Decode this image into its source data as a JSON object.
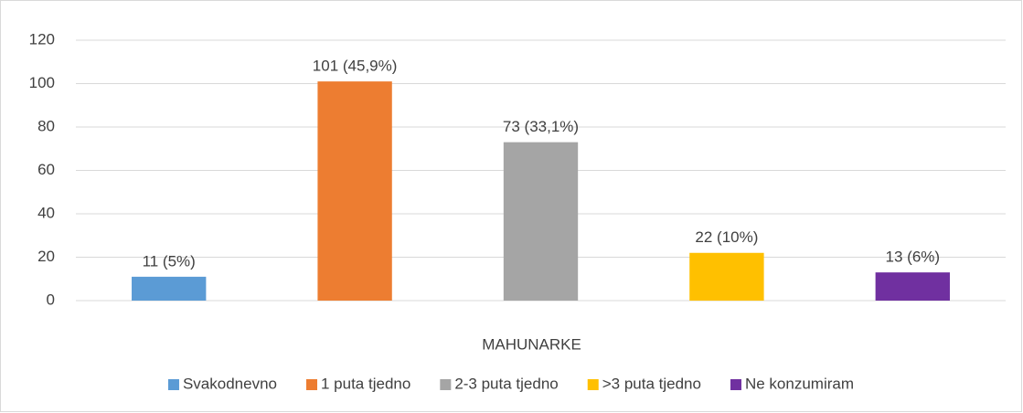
{
  "chart_data": {
    "type": "bar",
    "categories": [
      "MAHUNARKE"
    ],
    "series": [
      {
        "name": "Svakodnevno",
        "color": "#5b9bd5",
        "values": [
          11
        ],
        "value_labels": [
          "11 (5%)"
        ]
      },
      {
        "name": "1 puta tjedno",
        "color": "#ed7d31",
        "values": [
          101
        ],
        "value_labels": [
          "101 (45,9%)"
        ]
      },
      {
        "name": "2-3 puta tjedno",
        "color": "#a5a5a5",
        "values": [
          73
        ],
        "value_labels": [
          "73 (33,1%)"
        ]
      },
      {
        "name": ">3 puta tjedno",
        "color": "#ffc000",
        "values": [
          22
        ],
        "value_labels": [
          "22 (10%)"
        ]
      },
      {
        "name": "Ne konzumiram",
        "color": "#7030a0",
        "values": [
          13
        ],
        "value_labels": [
          "13 (6%)"
        ]
      }
    ],
    "ylim": [
      0,
      120
    ],
    "yticks": [
      0,
      20,
      40,
      60,
      80,
      100,
      120
    ],
    "grid": true,
    "legend": "bottom"
  }
}
